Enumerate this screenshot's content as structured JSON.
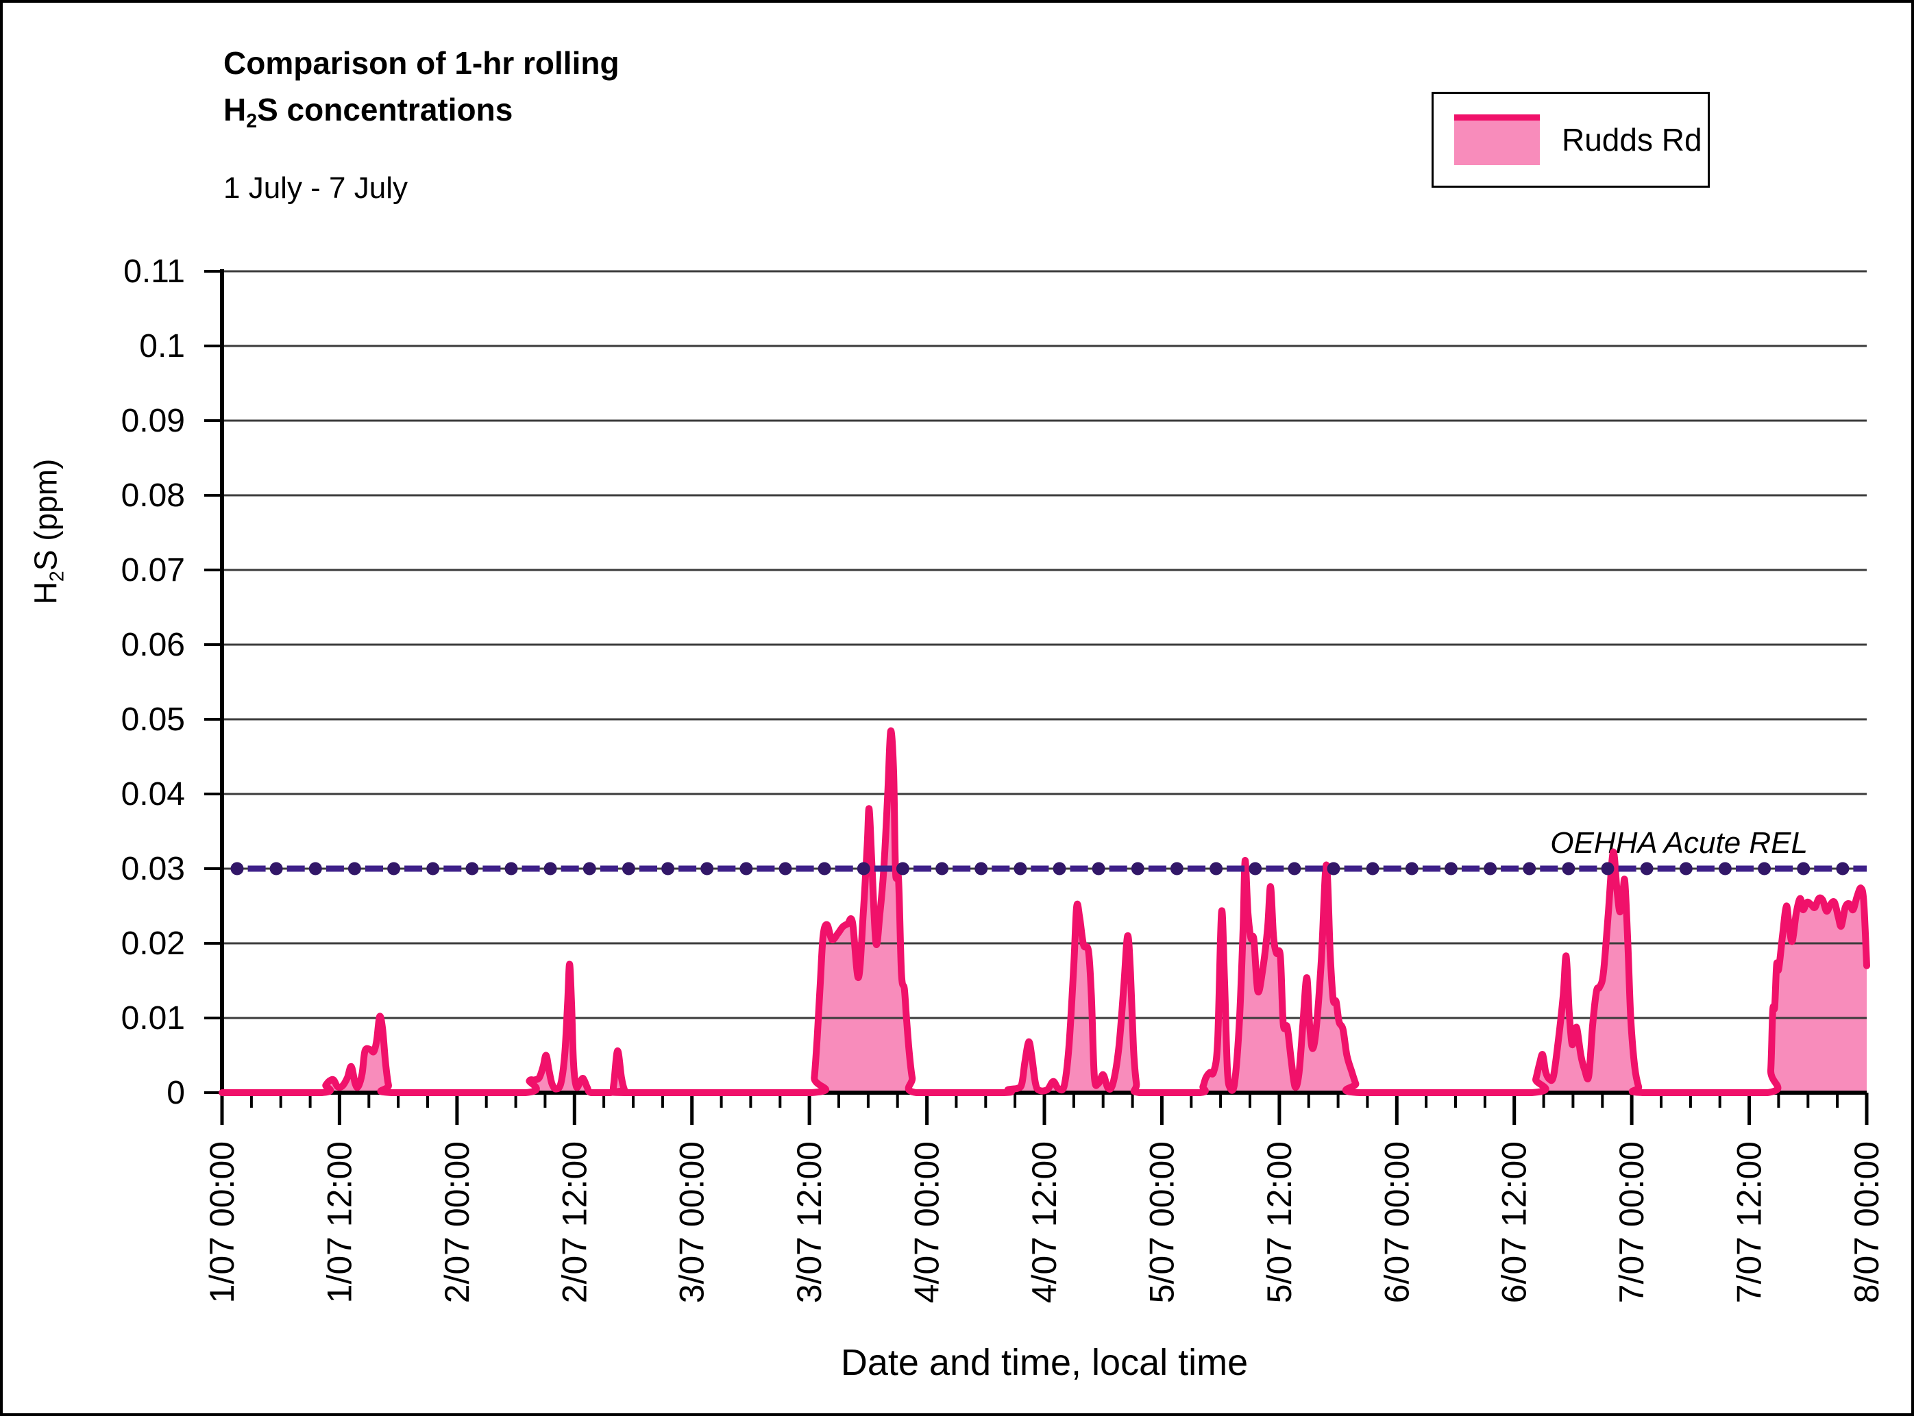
{
  "figure": {
    "title_line1": "Comparison of 1-hr rolling",
    "title_line2": {
      "pre": "H",
      "sub": "2",
      "post": "S concentrations"
    },
    "subtitle": "1 July - 7 July",
    "legend": {
      "label": "Rudds Rd"
    },
    "x_axis_title": "Date and time, local time",
    "y_axis_title": {
      "pre": "H",
      "sub": "2",
      "post": "S (ppm)"
    }
  },
  "colors": {
    "series_line": "#F0116A",
    "series_fill": "#F88CBB",
    "rel_dash": "#3E2089",
    "rel_marker": "#321768",
    "grid": "#3B3B3B",
    "axis": "#000000",
    "text": "#000000"
  },
  "chart_data": {
    "type": "area",
    "title": "Comparison of 1-hr rolling H2S concentrations",
    "subtitle": "1 July - 7 July",
    "xlabel": "Date and time, local time",
    "ylabel": "H2S (ppm)",
    "ylim": [
      0,
      0.11
    ],
    "grid": "horizontal",
    "legend_position": "top-right",
    "x_unit": "hours since 1/07 00:00",
    "x_range_hours": [
      0,
      168
    ],
    "x_major_tick_hours": 12,
    "x_minor_tick_hours": 3,
    "x_tick_labels": [
      "1/07 00:00",
      "1/07 12:00",
      "2/07 00:00",
      "2/07 12:00",
      "3/07 00:00",
      "3/07 12:00",
      "4/07 00:00",
      "4/07 12:00",
      "5/07 00:00",
      "5/07 12:00",
      "6/07 00:00",
      "6/07 12:00",
      "7/07 00:00",
      "7/07 12:00",
      "8/07 00:00"
    ],
    "y_ticks": [
      0,
      0.01,
      0.02,
      0.03,
      0.04,
      0.05,
      0.06,
      0.07,
      0.08,
      0.09,
      0.1,
      0.11
    ],
    "y_tick_labels": [
      "0",
      "0.01",
      "0.02",
      "0.03",
      "0.04",
      "0.05",
      "0.06",
      "0.07",
      "0.08",
      "0.09",
      "0.1",
      "0.11"
    ],
    "series": [
      {
        "name": "Rudds Rd",
        "type": "area",
        "points": [
          [
            0,
            0
          ],
          [
            10.2,
            0
          ],
          [
            10.6,
            0.001
          ],
          [
            11.0,
            0.0016
          ],
          [
            11.4,
            0.0017
          ],
          [
            11.8,
            0.0008
          ],
          [
            12.3,
            0.0009
          ],
          [
            12.8,
            0.002
          ],
          [
            13.2,
            0.0035
          ],
          [
            13.6,
            0.0012
          ],
          [
            13.9,
            0.0008
          ],
          [
            14.3,
            0.0025
          ],
          [
            14.6,
            0.0056
          ],
          [
            15.1,
            0.0058
          ],
          [
            15.5,
            0.0055
          ],
          [
            15.8,
            0.007
          ],
          [
            16.1,
            0.0102
          ],
          [
            16.4,
            0.0085
          ],
          [
            16.7,
            0.004
          ],
          [
            17.0,
            0.001
          ],
          [
            17.3,
            0
          ],
          [
            31.0,
            0
          ],
          [
            31.4,
            0.0016
          ],
          [
            31.9,
            0.0017
          ],
          [
            32.4,
            0.002
          ],
          [
            32.8,
            0.0035
          ],
          [
            33.1,
            0.005
          ],
          [
            33.4,
            0.003
          ],
          [
            33.7,
            0.0012
          ],
          [
            34.1,
            0.0005
          ],
          [
            34.6,
            0.0012
          ],
          [
            35.0,
            0.005
          ],
          [
            35.3,
            0.012
          ],
          [
            35.5,
            0.0172
          ],
          [
            35.7,
            0.012
          ],
          [
            35.9,
            0.004
          ],
          [
            36.2,
            0.0008
          ],
          [
            36.6,
            0.0015
          ],
          [
            36.9,
            0.0019
          ],
          [
            37.3,
            0.0007
          ],
          [
            37.7,
            0
          ],
          [
            39.7,
            0
          ],
          [
            40.0,
            0.001
          ],
          [
            40.4,
            0.0056
          ],
          [
            40.8,
            0.002
          ],
          [
            41.1,
            0.0004
          ],
          [
            41.4,
            0
          ],
          [
            60.2,
            0
          ],
          [
            60.5,
            0.002
          ],
          [
            60.8,
            0.0075
          ],
          [
            61.1,
            0.0145
          ],
          [
            61.4,
            0.021
          ],
          [
            61.8,
            0.0225
          ],
          [
            62.3,
            0.0205
          ],
          [
            62.9,
            0.0213
          ],
          [
            63.4,
            0.0222
          ],
          [
            63.9,
            0.0226
          ],
          [
            64.4,
            0.0228
          ],
          [
            65.0,
            0.0154
          ],
          [
            65.5,
            0.024
          ],
          [
            65.9,
            0.033
          ],
          [
            66.1,
            0.038
          ],
          [
            66.4,
            0.03
          ],
          [
            66.8,
            0.02
          ],
          [
            67.2,
            0.024
          ],
          [
            67.6,
            0.03
          ],
          [
            68.0,
            0.04
          ],
          [
            68.3,
            0.0484
          ],
          [
            68.6,
            0.043
          ],
          [
            68.8,
            0.0295
          ],
          [
            69.1,
            0.0287
          ],
          [
            69.4,
            0.016
          ],
          [
            69.7,
            0.0139
          ],
          [
            69.9,
            0.0102
          ],
          [
            70.2,
            0.0053
          ],
          [
            70.5,
            0.002
          ],
          [
            70.9,
            0
          ],
          [
            79.9,
            0
          ],
          [
            80.3,
            0.0004
          ],
          [
            81.3,
            0.0006
          ],
          [
            81.7,
            0.0012
          ],
          [
            82.0,
            0.004
          ],
          [
            82.4,
            0.0068
          ],
          [
            82.7,
            0.005
          ],
          [
            83.1,
            0.0012
          ],
          [
            83.5,
            0.0003
          ],
          [
            84.3,
            0.0004
          ],
          [
            84.9,
            0.0015
          ],
          [
            85.4,
            0.0006
          ],
          [
            86.0,
            0.0008
          ],
          [
            86.5,
            0.006
          ],
          [
            87.0,
            0.017
          ],
          [
            87.3,
            0.0249
          ],
          [
            87.6,
            0.0235
          ],
          [
            88.0,
            0.0198
          ],
          [
            88.5,
            0.019
          ],
          [
            88.8,
            0.013
          ],
          [
            89.1,
            0.0022
          ],
          [
            89.5,
            0.0012
          ],
          [
            90.0,
            0.0024
          ],
          [
            90.5,
            0.0006
          ],
          [
            91.0,
            0.0012
          ],
          [
            91.6,
            0.006
          ],
          [
            92.1,
            0.014
          ],
          [
            92.5,
            0.021
          ],
          [
            92.8,
            0.016
          ],
          [
            93.1,
            0.006
          ],
          [
            93.4,
            0.0012
          ],
          [
            93.7,
            0
          ],
          [
            99.9,
            0
          ],
          [
            100.2,
            0.0008
          ],
          [
            100.5,
            0.002
          ],
          [
            100.9,
            0.0027
          ],
          [
            101.3,
            0.0028
          ],
          [
            101.7,
            0.007
          ],
          [
            102.1,
            0.0242
          ],
          [
            102.4,
            0.015
          ],
          [
            102.7,
            0.003
          ],
          [
            103.0,
            0.0006
          ],
          [
            103.4,
            0.001
          ],
          [
            103.9,
            0.009
          ],
          [
            104.3,
            0.022
          ],
          [
            104.5,
            0.0311
          ],
          [
            104.8,
            0.024
          ],
          [
            105.1,
            0.0207
          ],
          [
            105.4,
            0.0205
          ],
          [
            105.8,
            0.0136
          ],
          [
            106.3,
            0.0165
          ],
          [
            106.8,
            0.022
          ],
          [
            107.1,
            0.0276
          ],
          [
            107.4,
            0.021
          ],
          [
            107.7,
            0.0187
          ],
          [
            108.1,
            0.0183
          ],
          [
            108.4,
            0.0092
          ],
          [
            108.8,
            0.0088
          ],
          [
            109.2,
            0.0045
          ],
          [
            109.6,
            0.0008
          ],
          [
            110.0,
            0.0025
          ],
          [
            110.4,
            0.009
          ],
          [
            110.8,
            0.0154
          ],
          [
            111.1,
            0.009
          ],
          [
            111.4,
            0.0059
          ],
          [
            111.8,
            0.009
          ],
          [
            112.3,
            0.018
          ],
          [
            112.8,
            0.0305
          ],
          [
            113.2,
            0.0185
          ],
          [
            113.5,
            0.0125
          ],
          [
            113.8,
            0.0122
          ],
          [
            114.1,
            0.0095
          ],
          [
            114.5,
            0.0085
          ],
          [
            114.9,
            0.005
          ],
          [
            115.4,
            0.0028
          ],
          [
            115.8,
            0.0012
          ],
          [
            116.2,
            0
          ],
          [
            133.8,
            0
          ],
          [
            134.2,
            0.0018
          ],
          [
            134.6,
            0.004
          ],
          [
            134.9,
            0.0051
          ],
          [
            135.2,
            0.0028
          ],
          [
            135.6,
            0.0018
          ],
          [
            136.0,
            0.0022
          ],
          [
            136.5,
            0.007
          ],
          [
            137.0,
            0.013
          ],
          [
            137.3,
            0.0183
          ],
          [
            137.6,
            0.011
          ],
          [
            137.9,
            0.0065
          ],
          [
            138.2,
            0.008
          ],
          [
            138.4,
            0.0086
          ],
          [
            138.8,
            0.005
          ],
          [
            139.2,
            0.003
          ],
          [
            139.6,
            0.0022
          ],
          [
            140.0,
            0.009
          ],
          [
            140.4,
            0.0136
          ],
          [
            140.7,
            0.0141
          ],
          [
            141.1,
            0.016
          ],
          [
            141.6,
            0.024
          ],
          [
            142.1,
            0.0322
          ],
          [
            142.5,
            0.027
          ],
          [
            142.8,
            0.0242
          ],
          [
            143.1,
            0.027
          ],
          [
            143.3,
            0.0282
          ],
          [
            143.6,
            0.02
          ],
          [
            143.9,
            0.0099
          ],
          [
            144.3,
            0.0035
          ],
          [
            144.7,
            0.0008
          ],
          [
            145.1,
            0
          ],
          [
            157.9,
            0
          ],
          [
            158.2,
            0.003
          ],
          [
            158.4,
            0.011
          ],
          [
            158.6,
            0.0115
          ],
          [
            158.8,
            0.0172
          ],
          [
            159.0,
            0.0165
          ],
          [
            159.4,
            0.021
          ],
          [
            159.8,
            0.025
          ],
          [
            160.1,
            0.022
          ],
          [
            160.4,
            0.0203
          ],
          [
            160.8,
            0.024
          ],
          [
            161.2,
            0.026
          ],
          [
            161.5,
            0.0245
          ],
          [
            161.9,
            0.0255
          ],
          [
            162.3,
            0.0252
          ],
          [
            162.7,
            0.0248
          ],
          [
            163.1,
            0.026
          ],
          [
            163.5,
            0.0258
          ],
          [
            163.9,
            0.0243
          ],
          [
            164.3,
            0.0252
          ],
          [
            164.7,
            0.0255
          ],
          [
            165.1,
            0.0235
          ],
          [
            165.4,
            0.0223
          ],
          [
            165.8,
            0.0248
          ],
          [
            166.2,
            0.0253
          ],
          [
            166.6,
            0.0245
          ],
          [
            167.0,
            0.0262
          ],
          [
            167.4,
            0.0274
          ],
          [
            167.7,
            0.0255
          ],
          [
            168,
            0.017
          ]
        ]
      },
      {
        "name": "OEHHA Acute REL",
        "type": "reference-line",
        "value": 0.03,
        "label": "OEHHA Acute REL",
        "marker_interval_hours": 4
      }
    ]
  }
}
